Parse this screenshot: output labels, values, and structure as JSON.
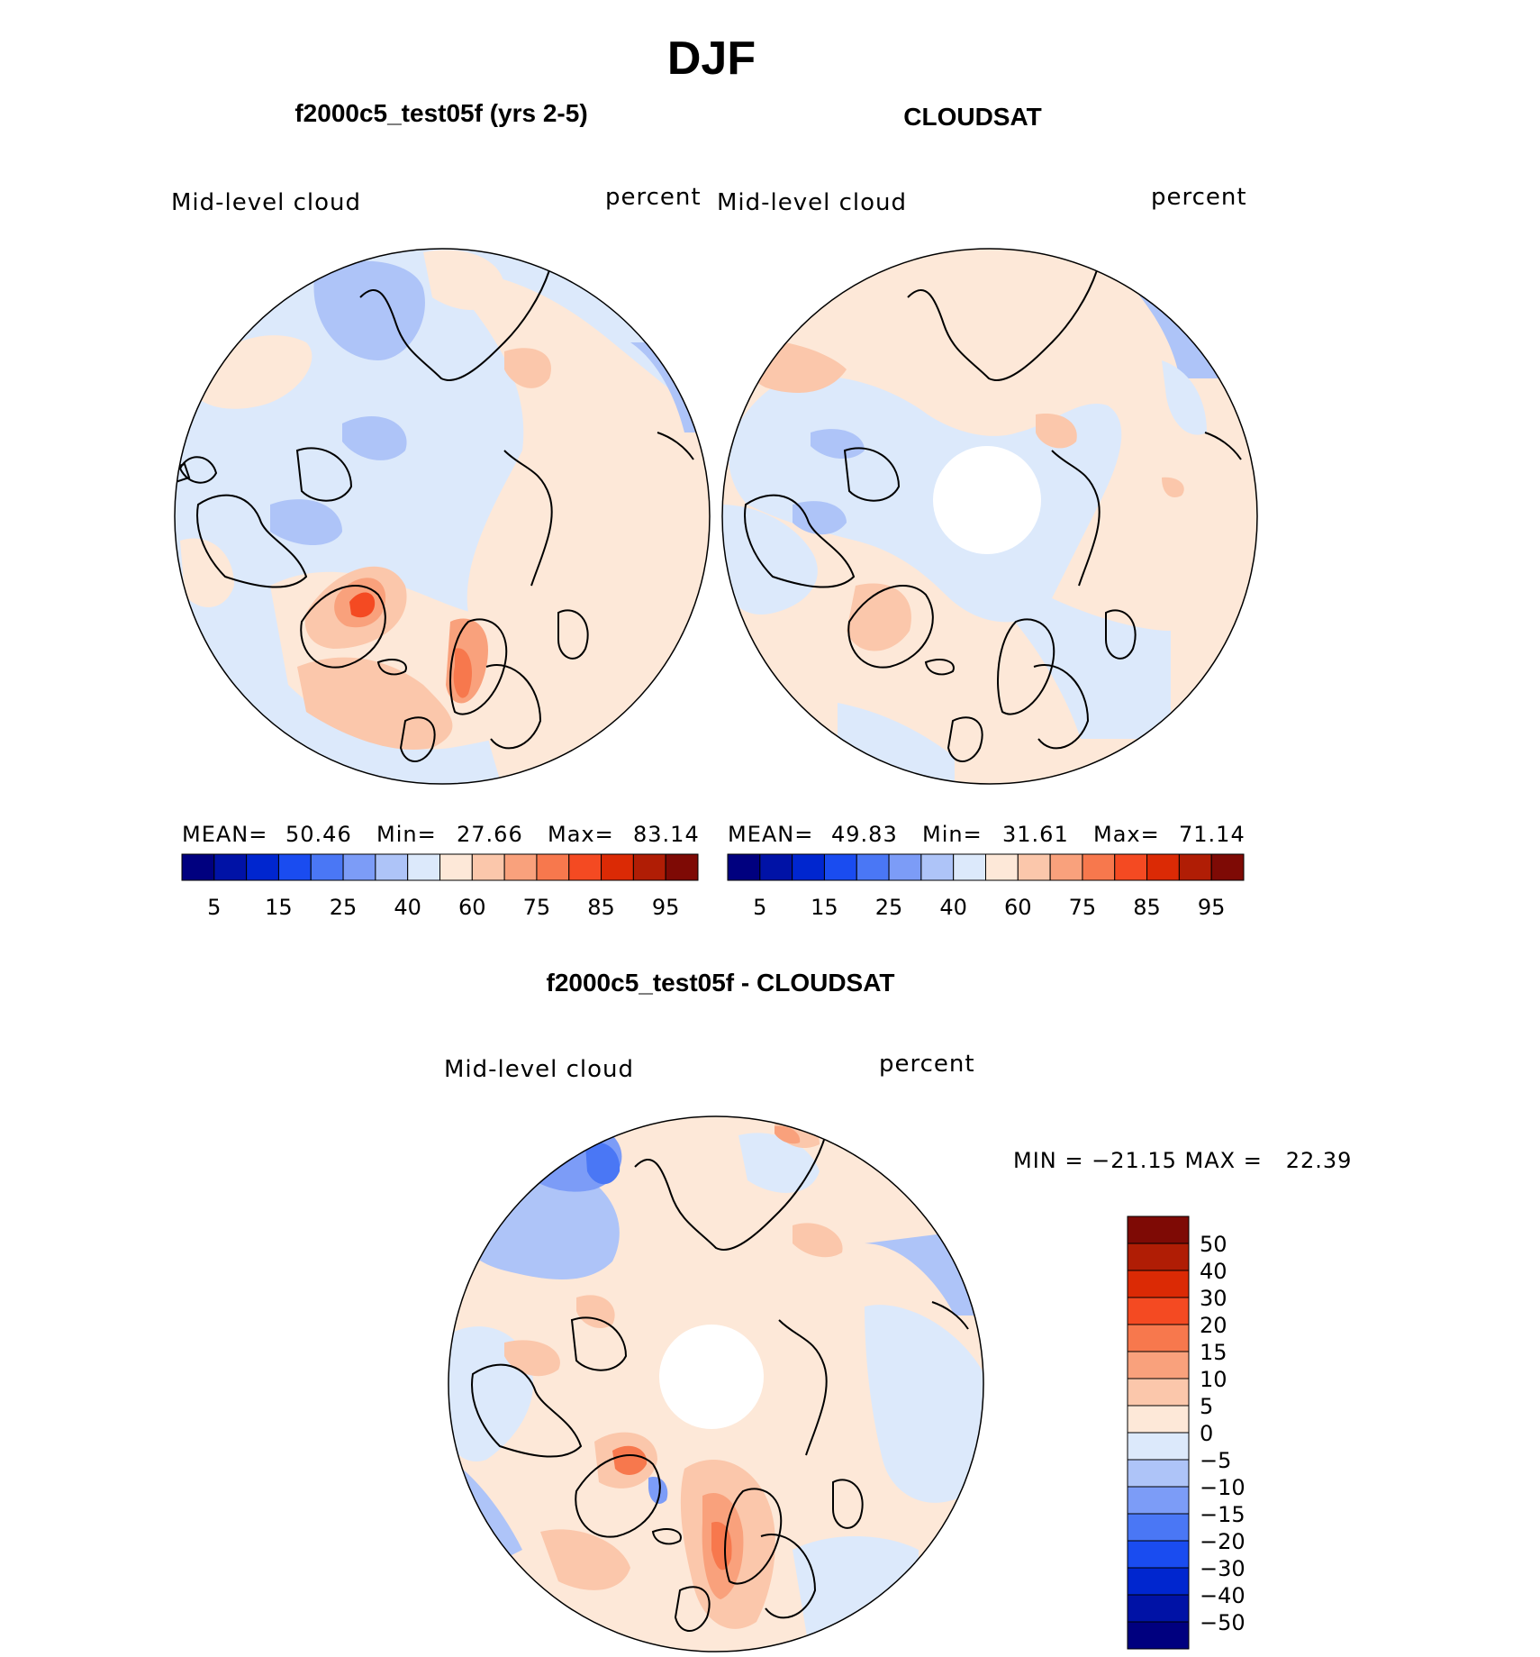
{
  "season": "DJF",
  "panels": [
    {
      "title": "f2000c5_test05f (yrs 2-5)",
      "variable": "Mid-level cloud",
      "units": "percent",
      "stats": {
        "mean_label": "MEAN=",
        "mean": "50.46",
        "min_label": "Min=",
        "min": "27.66",
        "max_label": "Max=",
        "max": "83.14"
      }
    },
    {
      "title": "CLOUDSAT",
      "variable": "Mid-level cloud",
      "units": "percent",
      "stats": {
        "mean_label": "MEAN=",
        "mean": "49.83",
        "min_label": "Min=",
        "min": "31.61",
        "max_label": "Max=",
        "max": "71.14"
      }
    },
    {
      "title": "f2000c5_test05f - CLOUDSAT",
      "variable": "Mid-level cloud",
      "units": "percent",
      "stats_text": "MIN = −21.15 MAX =   22.39"
    }
  ],
  "colorbar_abs": {
    "colors": [
      "#00007f",
      "#0012a6",
      "#0026cf",
      "#1a4cf0",
      "#4a77f5",
      "#7c9cf7",
      "#aec4f8",
      "#dce9fb",
      "#fde8d8",
      "#fbc7ab",
      "#f9a17c",
      "#f7784d",
      "#f44a22",
      "#db2a05",
      "#b01d05",
      "#7e0a05"
    ],
    "tick_labels": [
      "5",
      "15",
      "25",
      "40",
      "60",
      "75",
      "85",
      "95"
    ]
  },
  "colorbar_diff": {
    "colors": [
      "#00007f",
      "#0012a6",
      "#0026cf",
      "#1a4cf0",
      "#4a77f5",
      "#7c9cf7",
      "#aec4f8",
      "#dce9fb",
      "#fde8d8",
      "#fbc7ab",
      "#f9a17c",
      "#f7784d",
      "#f44a22",
      "#db2a05",
      "#b01d05",
      "#7e0a05"
    ],
    "tick_labels": [
      "50",
      "40",
      "30",
      "20",
      "15",
      "10",
      "5",
      "0",
      "−5",
      "−10",
      "−15",
      "−20",
      "−30",
      "−40",
      "−50"
    ]
  }
}
